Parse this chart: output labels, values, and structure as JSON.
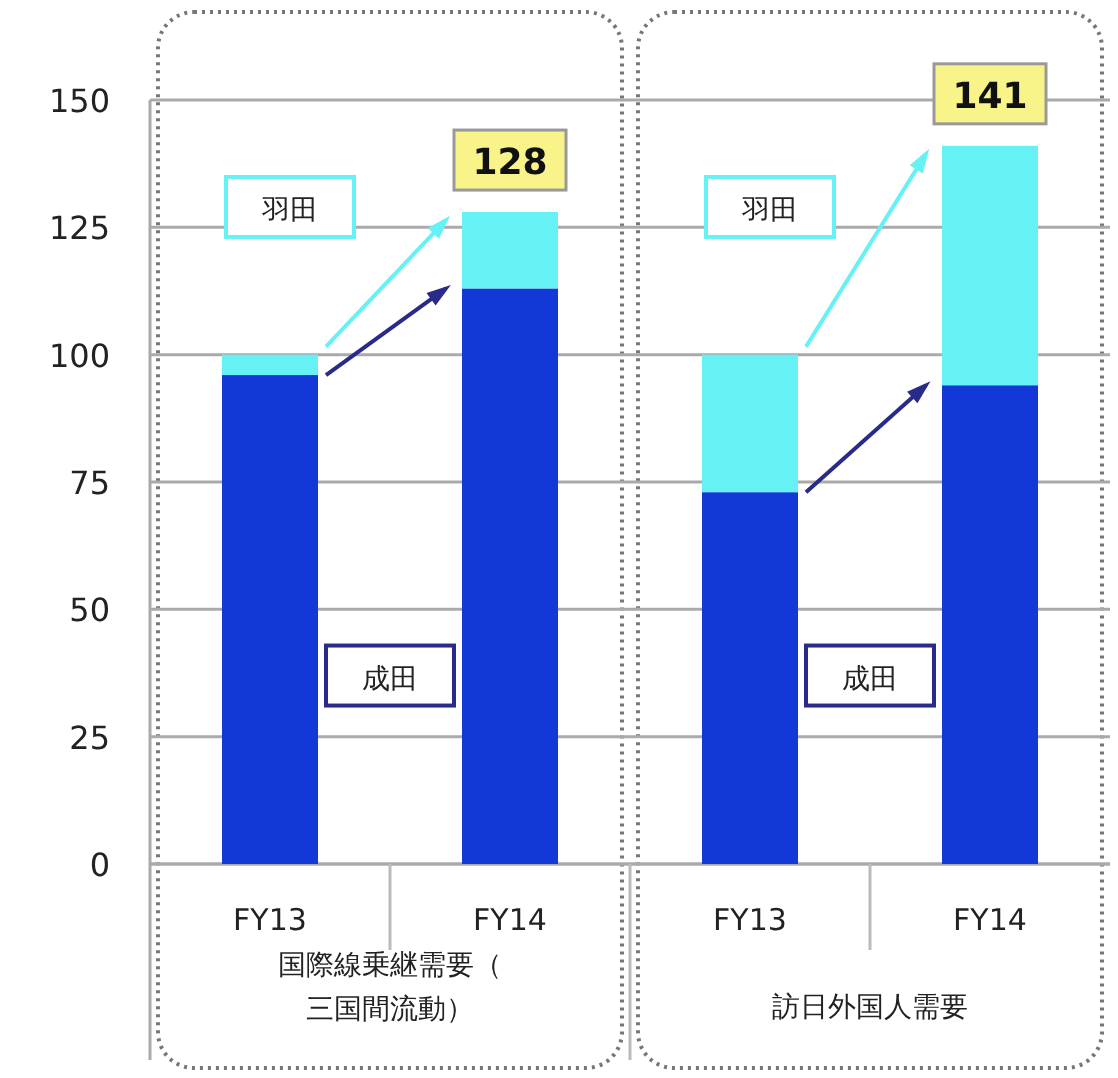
{
  "chart_data": {
    "type": "bar",
    "stacked": true,
    "categories": [
      "FY13",
      "FY14",
      "FY13",
      "FY14"
    ],
    "series": [
      {
        "name": "成田",
        "color": "#1238d8",
        "values": [
          96,
          113,
          73,
          94
        ]
      },
      {
        "name": "羽田",
        "color": "#66f2f5",
        "values": [
          4,
          15,
          27,
          47
        ]
      }
    ],
    "totals": [
      null,
      "128",
      null,
      "141"
    ],
    "ylim": [
      0,
      150
    ],
    "yticks": [
      0,
      25,
      50,
      75,
      100,
      125,
      150
    ],
    "grid": "y",
    "annotations": [
      "国際線乗継需要（三国間流動）",
      "訪日外国人需要"
    ]
  }
}
